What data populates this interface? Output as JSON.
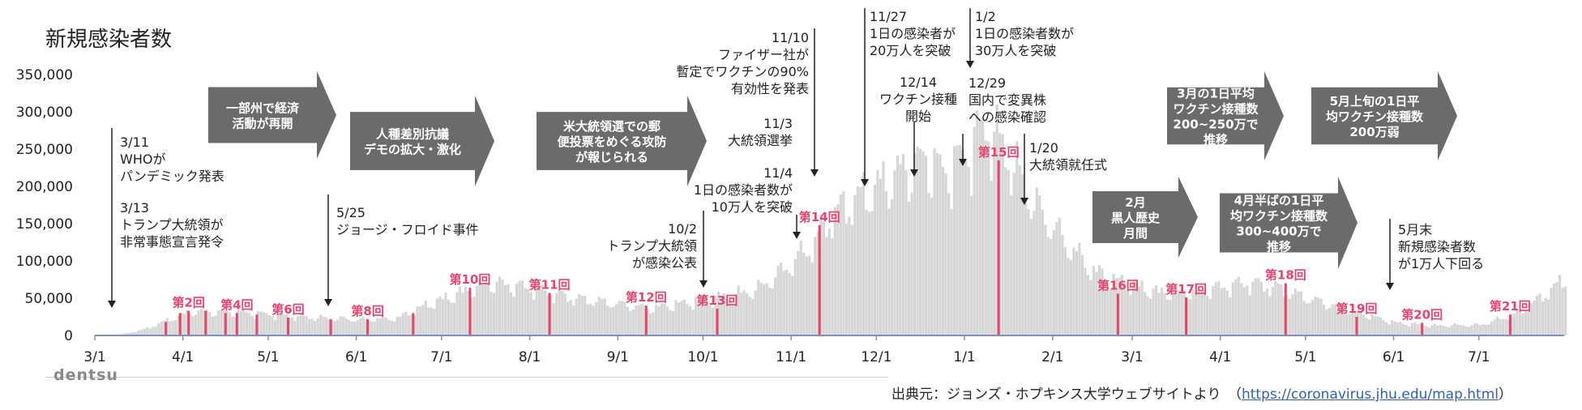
{
  "page": {
    "title": "新規感染者数",
    "brand": "dentsu"
  },
  "source": {
    "prefix": "出典元：ジョンズ・ホプキンス大学ウェブサイトより　（",
    "url": "https://coronavirus.jhu.edu/map.html",
    "suffix": "）"
  },
  "chart_data": {
    "type": "bar",
    "title": "新規感染者数",
    "xlabel": "",
    "ylabel": "",
    "ylim": [
      0,
      350000
    ],
    "yticks": [
      "0",
      "50,000",
      "100,000",
      "150,000",
      "200,000",
      "250,000",
      "300,000",
      "350,000"
    ],
    "ytick_values": [
      0,
      50000,
      100000,
      150000,
      200000,
      250000,
      300000,
      350000
    ],
    "x_range": [
      "2020-03-01",
      "2021-07-31"
    ],
    "xticks": [
      {
        "label": "3/1",
        "date": "2020-03-01"
      },
      {
        "label": "4/1",
        "date": "2020-04-01"
      },
      {
        "label": "5/1",
        "date": "2020-05-01"
      },
      {
        "label": "6/1",
        "date": "2020-06-01"
      },
      {
        "label": "7/1",
        "date": "2020-07-01"
      },
      {
        "label": "8/1",
        "date": "2020-08-01"
      },
      {
        "label": "9/1",
        "date": "2020-09-01"
      },
      {
        "label": "10/1",
        "date": "2020-10-01"
      },
      {
        "label": "11/1",
        "date": "2020-11-01"
      },
      {
        "label": "12/1",
        "date": "2020-12-01"
      },
      {
        "label": "1/1",
        "date": "2021-01-01"
      },
      {
        "label": "2/1",
        "date": "2021-02-01"
      },
      {
        "label": "3/1",
        "date": "2021-03-01"
      },
      {
        "label": "4/1",
        "date": "2021-04-01"
      },
      {
        "label": "5/1",
        "date": "2021-05-01"
      },
      {
        "label": "6/1",
        "date": "2021-06-01"
      },
      {
        "label": "7/1",
        "date": "2021-07-01"
      }
    ],
    "daily_series_anchors": [
      [
        "2020-03-01",
        0
      ],
      [
        "2020-03-10",
        1500
      ],
      [
        "2020-03-18",
        8000
      ],
      [
        "2020-03-26",
        20000
      ],
      [
        "2020-04-04",
        32000
      ],
      [
        "2020-04-24",
        30000
      ],
      [
        "2020-05-15",
        24000
      ],
      [
        "2020-06-01",
        21000
      ],
      [
        "2020-06-15",
        23000
      ],
      [
        "2020-06-25",
        40000
      ],
      [
        "2020-07-10",
        60000
      ],
      [
        "2020-07-18",
        70000
      ],
      [
        "2020-08-01",
        63000
      ],
      [
        "2020-08-15",
        50000
      ],
      [
        "2020-09-01",
        42000
      ],
      [
        "2020-09-12",
        36000
      ],
      [
        "2020-09-25",
        44000
      ],
      [
        "2020-10-10",
        52000
      ],
      [
        "2020-10-20",
        62000
      ],
      [
        "2020-10-30",
        90000
      ],
      [
        "2020-11-08",
        120000
      ],
      [
        "2020-11-15",
        160000
      ],
      [
        "2020-11-25",
        185000
      ],
      [
        "2020-12-02",
        200000
      ],
      [
        "2020-12-10",
        220000
      ],
      [
        "2020-12-18",
        235000
      ],
      [
        "2020-12-25",
        215000
      ],
      [
        "2021-01-02",
        245000
      ],
      [
        "2021-01-08",
        280000
      ],
      [
        "2021-01-15",
        245000
      ],
      [
        "2021-01-25",
        175000
      ],
      [
        "2021-02-05",
        125000
      ],
      [
        "2021-02-15",
        85000
      ],
      [
        "2021-02-25",
        70000
      ],
      [
        "2021-03-10",
        57000
      ],
      [
        "2021-03-25",
        60000
      ],
      [
        "2021-04-10",
        70000
      ],
      [
        "2021-04-20",
        64000
      ],
      [
        "2021-05-01",
        50000
      ],
      [
        "2021-05-15",
        35000
      ],
      [
        "2021-06-01",
        17000
      ],
      [
        "2021-06-15",
        13000
      ],
      [
        "2021-07-01",
        14000
      ],
      [
        "2021-07-15",
        30000
      ],
      [
        "2021-07-31",
        75000
      ]
    ],
    "waves": [
      {
        "label": "第2回",
        "date": "2020-04-03",
        "value": 33000
      },
      {
        "label": "第4回",
        "date": "2020-04-20",
        "value": 30000
      },
      {
        "label": "第6回",
        "date": "2020-05-08",
        "value": 24000
      },
      {
        "label": "第8回",
        "date": "2020-06-05",
        "value": 22000
      },
      {
        "label": "第10回",
        "date": "2020-07-11",
        "value": 64000
      },
      {
        "label": "第11回",
        "date": "2020-08-08",
        "value": 57000
      },
      {
        "label": "第12回",
        "date": "2020-09-11",
        "value": 40000
      },
      {
        "label": "第13回",
        "date": "2020-10-06",
        "value": 36000
      },
      {
        "label": "第14回",
        "date": "2020-11-11",
        "value": 148000
      },
      {
        "label": "第15回",
        "date": "2021-01-13",
        "value": 235000
      },
      {
        "label": "第16回",
        "date": "2021-02-24",
        "value": 56000
      },
      {
        "label": "第17回",
        "date": "2021-03-20",
        "value": 51000
      },
      {
        "label": "第18回",
        "date": "2021-04-24",
        "value": 70000
      },
      {
        "label": "第19回",
        "date": "2021-05-19",
        "value": 25000
      },
      {
        "label": "第20回",
        "date": "2021-06-11",
        "value": 17000
      },
      {
        "label": "第21回",
        "date": "2021-07-12",
        "value": 28000
      }
    ],
    "extra_wave_lines": [
      {
        "date": "2020-03-26",
        "value": 18000
      },
      {
        "date": "2020-03-31",
        "value": 30000
      },
      {
        "date": "2020-04-09",
        "value": 33000
      },
      {
        "date": "2020-04-16",
        "value": 30000
      },
      {
        "date": "2020-04-27",
        "value": 28000
      },
      {
        "date": "2020-05-23",
        "value": 22000
      },
      {
        "date": "2020-06-21",
        "value": 30000
      }
    ],
    "annotations": [
      {
        "id": "who",
        "lines": [
          "3/11",
          "WHOが",
          "パンデミック発表"
        ],
        "anchor": "2020-03-11"
      },
      {
        "id": "trump-emergency",
        "lines": [
          "3/13",
          "トランプ大統領が",
          "非常事態宣言発令"
        ]
      },
      {
        "id": "floyd",
        "lines": [
          "5/25",
          "ジョージ・フロイド事件"
        ],
        "anchor": "2020-05-25"
      },
      {
        "id": "trump-covid",
        "lines": [
          "10/2",
          "トランプ大統領",
          "が感染公表"
        ],
        "anchor": "2020-10-02"
      },
      {
        "id": "election",
        "lines": [
          "11/3",
          "大統領選挙"
        ],
        "anchor": "2020-11-03"
      },
      {
        "id": "100k",
        "lines": [
          "11/4",
          "1日の感染者数が",
          "10万人を突破"
        ]
      },
      {
        "id": "pfizer",
        "lines": [
          "11/10",
          "ファイザー社が",
          "暫定でワクチンの90%",
          "有効性を発表"
        ],
        "anchor": "2020-11-10"
      },
      {
        "id": "200k",
        "lines": [
          "11/27",
          "1日の感染者が",
          "20万人を突破"
        ],
        "anchor": "2020-11-27"
      },
      {
        "id": "vaccination",
        "lines": [
          "12/14",
          "ワクチン接種",
          "開始"
        ],
        "anchor": "2020-12-14"
      },
      {
        "id": "300k",
        "lines": [
          "1/2",
          "1日の感染者数が",
          "30万人を突破"
        ],
        "anchor": "2021-01-02"
      },
      {
        "id": "variant",
        "lines": [
          "12/29",
          "国内で変異株",
          "への感染確認"
        ],
        "anchor": "2020-12-29"
      },
      {
        "id": "inauguration",
        "lines": [
          "1/20",
          "大統領就任式"
        ],
        "anchor": "2021-01-20"
      },
      {
        "id": "below10k",
        "lines": [
          "5月末",
          "新規感染者数",
          "が1万人下回る"
        ],
        "anchor": "2021-05-31"
      }
    ],
    "event_arrows": [
      {
        "id": "reopen",
        "lines": [
          "一部州で経済",
          "活動が再開"
        ]
      },
      {
        "id": "protest",
        "lines": [
          "人種差別抗議",
          "デモの拡大・激化"
        ]
      },
      {
        "id": "voting",
        "lines": [
          "米大統領選での郵",
          "便投票をめぐる攻防",
          "が報じられる"
        ]
      },
      {
        "id": "black-history",
        "lines": [
          "2月",
          "黒人歴史",
          "月間"
        ]
      },
      {
        "id": "vax-march",
        "lines": [
          "3月の1日平均",
          "ワクチン接種数",
          "200~250万で",
          "推移"
        ]
      },
      {
        "id": "vax-april",
        "lines": [
          "4月半ばの1日平",
          "均ワクチン接種数",
          "300~400万で",
          "推移"
        ]
      },
      {
        "id": "vax-may",
        "lines": [
          "5月上旬の1日平",
          "均ワクチン接種数",
          "200万弱"
        ]
      }
    ],
    "colors": {
      "bars": "#d6d6d6",
      "wave": "#e8436d",
      "arrow": "#6b6b6b",
      "axis": "#7f8fc6",
      "text": "#222222"
    }
  }
}
